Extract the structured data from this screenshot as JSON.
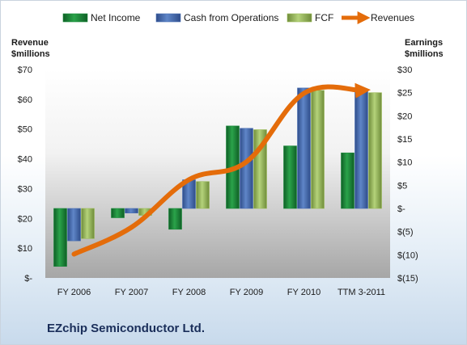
{
  "company_name": "EZchip Semiconductor Ltd.",
  "colors": {
    "net_income": "#1a8a3a",
    "cash_ops": "#4a6fb5",
    "fcf": "#9bbb59",
    "revenues": "#e46c0a"
  },
  "chart_data": {
    "type": "bar",
    "categories": [
      "FY 2006",
      "FY 2007",
      "FY 2008",
      "FY 2009",
      "FY 2010",
      "TTM 3-2011"
    ],
    "series": [
      {
        "name": "Net Income",
        "axis": "right",
        "type": "bar",
        "values": [
          -12.5,
          -2.0,
          -4.5,
          17.8,
          13.5,
          12.0
        ]
      },
      {
        "name": "Cash from Operations",
        "axis": "right",
        "type": "bar",
        "values": [
          -7.0,
          -1.0,
          6.2,
          17.3,
          26.0,
          25.5
        ]
      },
      {
        "name": "FCF",
        "axis": "right",
        "type": "bar",
        "values": [
          -6.5,
          -1.5,
          5.8,
          17.0,
          25.5,
          25.0
        ]
      },
      {
        "name": "Revenues",
        "axis": "left",
        "type": "line",
        "values": [
          8,
          17,
          33,
          39,
          62,
          63
        ]
      }
    ],
    "ylabel_left": "Revenue\n$millions",
    "ylabel_right": "Earnings\n$millions",
    "ylim_left": [
      0,
      70
    ],
    "ylim_right": [
      -15,
      30
    ],
    "yticks_left": [
      "$-",
      "$10",
      "$20",
      "$30",
      "$40",
      "$50",
      "$60",
      "$70"
    ],
    "yticks_right": [
      "$(15)",
      "$(10)",
      "$(5)",
      "$-",
      "$5",
      "$10",
      "$15",
      "$20",
      "$25",
      "$30"
    ],
    "legend_position": "top",
    "grid": false
  }
}
